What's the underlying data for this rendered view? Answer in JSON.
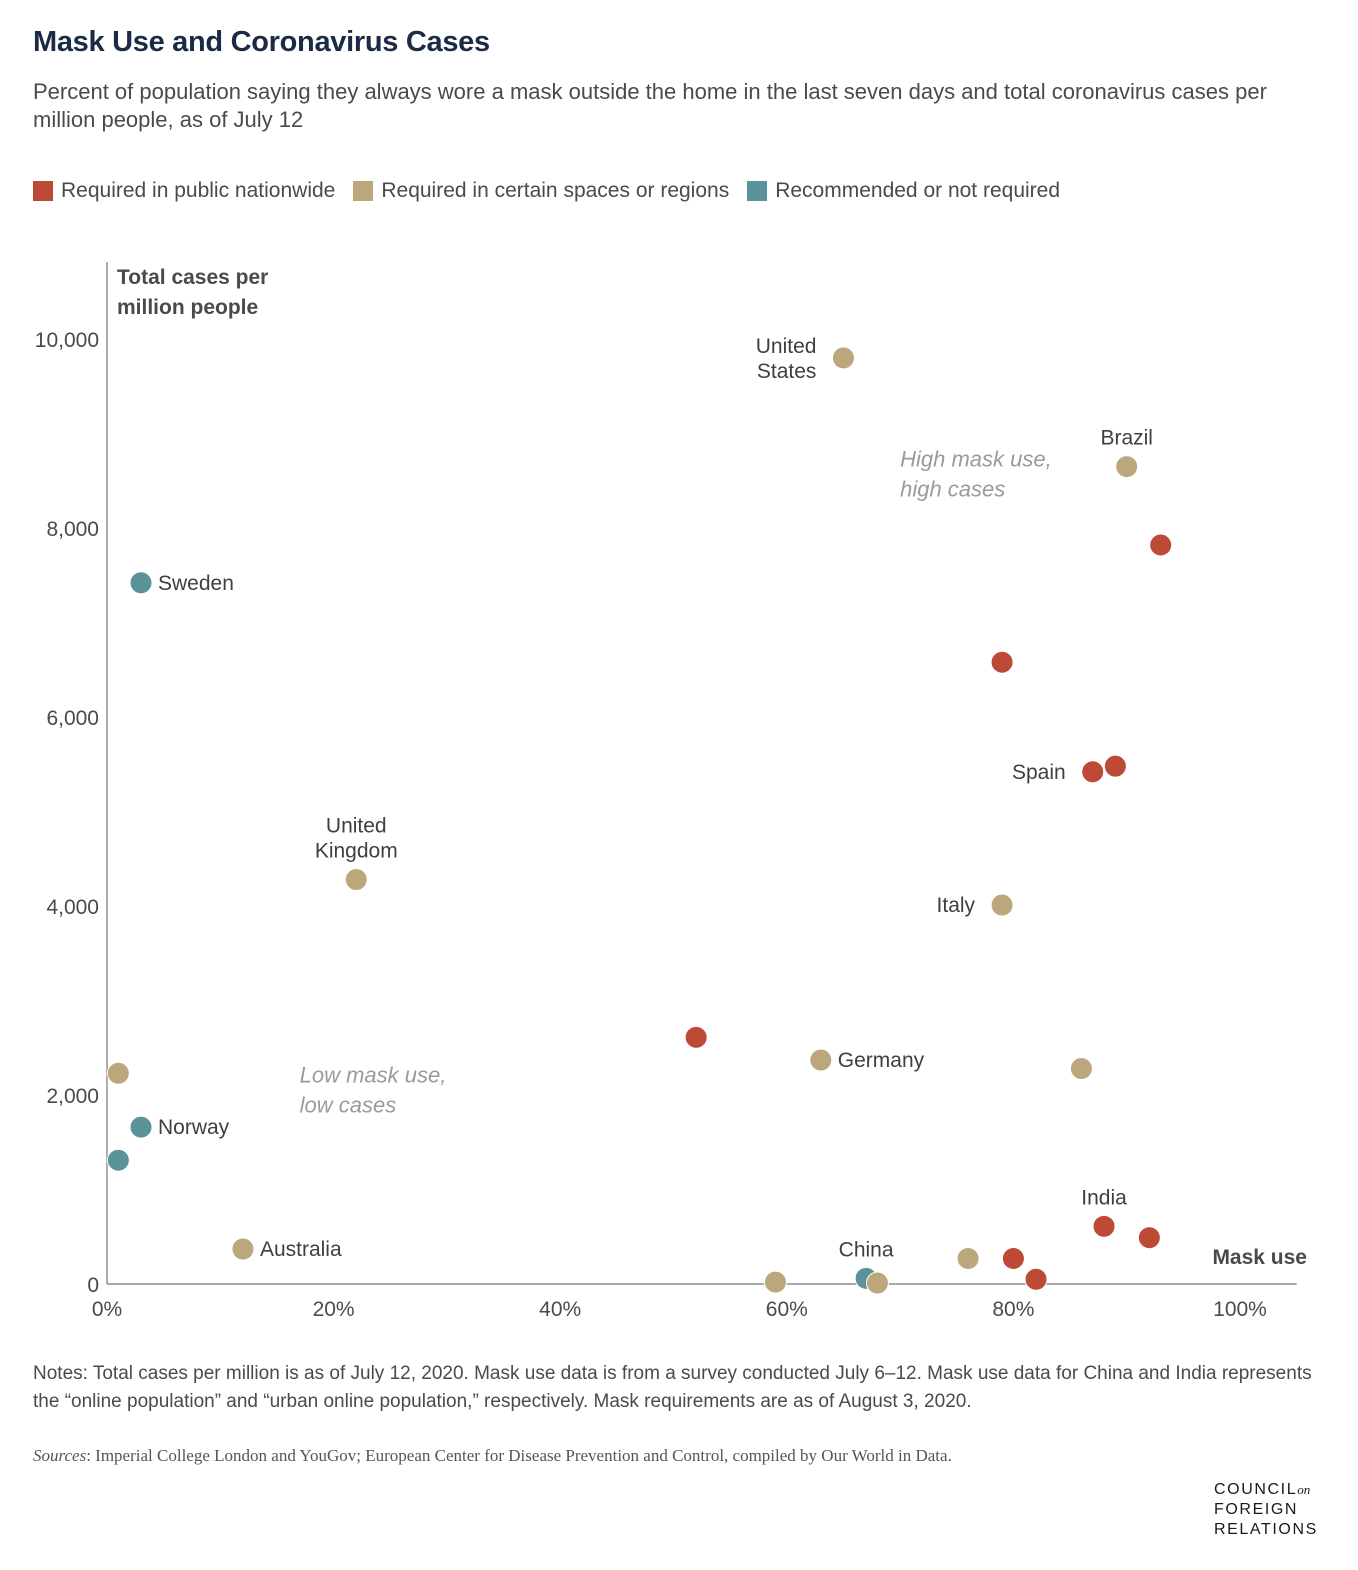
{
  "header": {
    "title": "Mask Use and Coronavirus Cases",
    "subtitle": "Percent of population saying they always wore a mask outside the home in the last seven days and total coronavirus cases per million people, as of July 12"
  },
  "legend": [
    {
      "label": "Required in public nationwide",
      "color": "#bd4a37"
    },
    {
      "label": "Required in certain spaces or regions",
      "color": "#bca77d"
    },
    {
      "label": "Recommended or not required",
      "color": "#5b939b"
    }
  ],
  "chart_data": {
    "type": "scatter",
    "title": "Mask Use and Coronavirus Cases",
    "xlabel": "Mask use",
    "ylabel_lines": [
      "Total cases per",
      "million people"
    ],
    "xlim": [
      0,
      105
    ],
    "ylim": [
      0,
      10800
    ],
    "x_ticks": [
      0,
      20,
      40,
      60,
      80,
      100
    ],
    "x_tick_labels": [
      "0%",
      "20%",
      "40%",
      "60%",
      "80%",
      "100%"
    ],
    "y_ticks": [
      0,
      2000,
      4000,
      6000,
      8000,
      10000
    ],
    "y_tick_labels": [
      "0",
      "2,000",
      "4,000",
      "6,000",
      "8,000",
      "10,000"
    ],
    "grid": false,
    "legend_position": "top",
    "annotations": [
      {
        "lines": [
          "High mask use,",
          "high cases"
        ],
        "x": 70,
        "y": 8650
      },
      {
        "lines": [
          "Low mask use,",
          "low cases"
        ],
        "x": 17,
        "y": 2130
      }
    ],
    "points": [
      {
        "x": 65,
        "y": 9800,
        "group": 1,
        "label": [
          "United",
          "States"
        ],
        "label_pos": "left"
      },
      {
        "x": 90,
        "y": 8650,
        "group": 1,
        "label": [
          "Brazil"
        ],
        "label_pos": "above"
      },
      {
        "x": 93,
        "y": 7820,
        "group": 0
      },
      {
        "x": 3,
        "y": 7420,
        "group": 2,
        "label": [
          "Sweden"
        ],
        "label_pos": "right"
      },
      {
        "x": 79,
        "y": 6580,
        "group": 0
      },
      {
        "x": 89,
        "y": 5480,
        "group": 0
      },
      {
        "x": 87,
        "y": 5420,
        "group": 0,
        "label": [
          "Spain"
        ],
        "label_pos": "left"
      },
      {
        "x": 22,
        "y": 4280,
        "group": 1,
        "label": [
          "United",
          "Kingdom"
        ],
        "label_pos": "above"
      },
      {
        "x": 79,
        "y": 4010,
        "group": 1,
        "label": [
          "Italy"
        ],
        "label_pos": "left"
      },
      {
        "x": 52,
        "y": 2610,
        "group": 0
      },
      {
        "x": 63,
        "y": 2370,
        "group": 1,
        "label": [
          "Germany"
        ],
        "label_pos": "right"
      },
      {
        "x": 86,
        "y": 2280,
        "group": 1
      },
      {
        "x": 1,
        "y": 2230,
        "group": 1
      },
      {
        "x": 3,
        "y": 1660,
        "group": 2,
        "label": [
          "Norway"
        ],
        "label_pos": "right"
      },
      {
        "x": 1,
        "y": 1310,
        "group": 2
      },
      {
        "x": 88,
        "y": 610,
        "group": 0,
        "label": [
          "India"
        ],
        "label_pos": "above"
      },
      {
        "x": 92,
        "y": 490,
        "group": 0
      },
      {
        "x": 12,
        "y": 370,
        "group": 1,
        "label": [
          "Australia"
        ],
        "label_pos": "right"
      },
      {
        "x": 80,
        "y": 270,
        "group": 0
      },
      {
        "x": 76,
        "y": 270,
        "group": 1
      },
      {
        "x": 67,
        "y": 60,
        "group": 2,
        "label": [
          "China"
        ],
        "label_pos": "above"
      },
      {
        "x": 82,
        "y": 50,
        "group": 0
      },
      {
        "x": 59,
        "y": 20,
        "group": 1
      },
      {
        "x": 68,
        "y": 10,
        "group": 1
      }
    ]
  },
  "footer": {
    "notes": "Notes: Total cases per million is as of July 12, 2020. Mask use data is from a survey conducted July 6–12. Mask use data for China and India represents the “online population” and “urban online population,” respectively. Mask requirements are as of August 3, 2020.",
    "sources_label": "Sources",
    "sources_text": ": Imperial College London and YouGov; European Center for Disease Prevention and Control, compiled by Our World in Data.",
    "logo_line1": "COUNCIL",
    "logo_on": "on",
    "logo_line2": "FOREIGN",
    "logo_line3": "RELATIONS"
  }
}
